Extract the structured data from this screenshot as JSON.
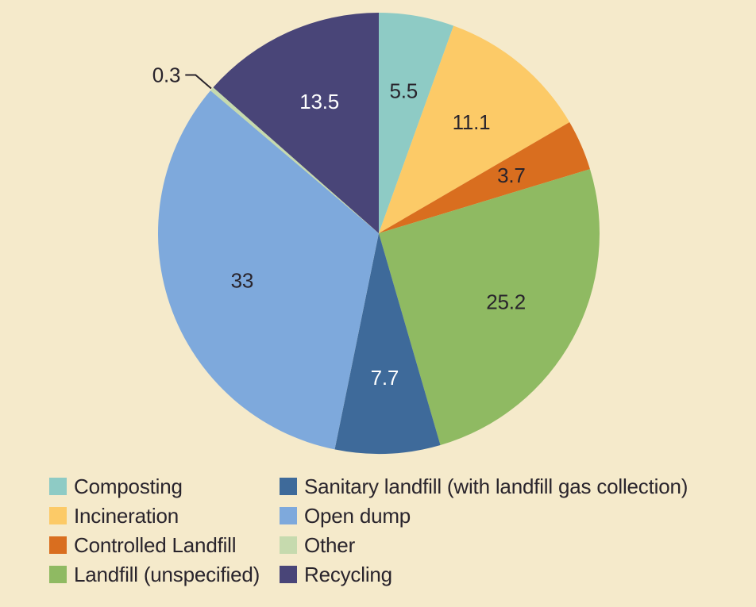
{
  "background_color": "#f5eacb",
  "text_color": "#29242c",
  "chart_data": {
    "type": "pie",
    "title": "",
    "start_angle_deg": 0,
    "direction": "clockwise",
    "total": 100,
    "legend_position": "bottom",
    "slices": [
      {
        "label": "Composting",
        "value": 5.5,
        "display": "5.5",
        "color": "#8ecbc5",
        "label_color": "#29242c",
        "label_placement": "inside"
      },
      {
        "label": "Incineration",
        "value": 11.1,
        "display": "11.1",
        "color": "#fcca67",
        "label_color": "#29242c",
        "label_placement": "inside"
      },
      {
        "label": "Controlled Landfill",
        "value": 3.7,
        "display": "3.7",
        "color": "#d96e1f",
        "label_color": "#29242c",
        "label_placement": "inside"
      },
      {
        "label": "Landfill (unspecified)",
        "value": 25.2,
        "display": "25.2",
        "color": "#8fba62",
        "label_color": "#29242c",
        "label_placement": "inside"
      },
      {
        "label": "Sanitary landfill (with landfill gas collection)",
        "value": 7.7,
        "display": "7.7",
        "color": "#3e6a9a",
        "label_color": "#ffffff",
        "label_placement": "inside"
      },
      {
        "label": "Open dump",
        "value": 33,
        "display": "33",
        "color": "#7ea9dc",
        "label_color": "#29242c",
        "label_placement": "inside"
      },
      {
        "label": "Other",
        "value": 0.3,
        "display": "0.3",
        "color": "#c6daae",
        "label_color": "#29242c",
        "label_placement": "outside"
      },
      {
        "label": "Recycling",
        "value": 13.5,
        "display": "13.5",
        "color": "#494578",
        "label_color": "#ffffff",
        "label_placement": "inside"
      }
    ],
    "legend_columns": [
      [
        0,
        1,
        2,
        3
      ],
      [
        4,
        5,
        6,
        7
      ]
    ]
  }
}
